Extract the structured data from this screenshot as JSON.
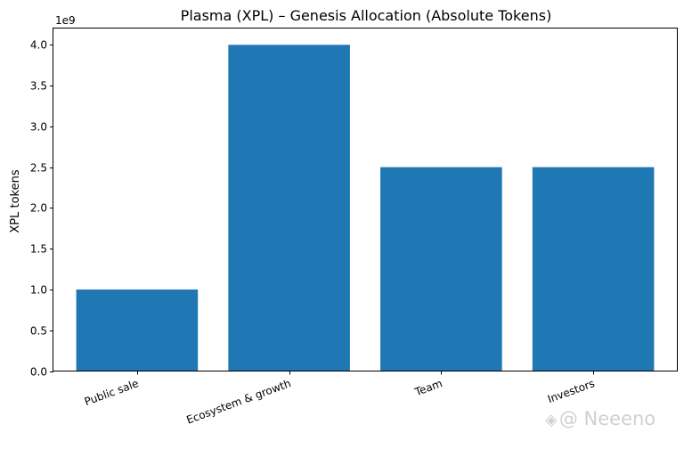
{
  "chart_data": {
    "type": "bar",
    "title": "Plasma (XPL) – Genesis Allocation (Absolute Tokens)",
    "xlabel": "",
    "ylabel": "XPL tokens",
    "offset_label": "1e9",
    "categories": [
      "Public sale",
      "Ecosystem & growth",
      "Team",
      "Investors"
    ],
    "values": [
      1000000000,
      4000000000,
      2500000000,
      2500000000
    ],
    "ylim": [
      0,
      4200000000
    ],
    "y_ticks": [
      0,
      0.5,
      1.0,
      1.5,
      2.0,
      2.5,
      3.0,
      3.5,
      4.0
    ],
    "y_tick_labels": [
      "0.0",
      "0.5",
      "1.0",
      "1.5",
      "2.0",
      "2.5",
      "3.0",
      "3.5",
      "4.0"
    ],
    "tick_scale": 1000000000,
    "bar_color": "#1f77b4",
    "grid": false,
    "legend": "none"
  },
  "watermark": {
    "icon": "brand-logo-icon",
    "text": "@ Neeeno"
  }
}
